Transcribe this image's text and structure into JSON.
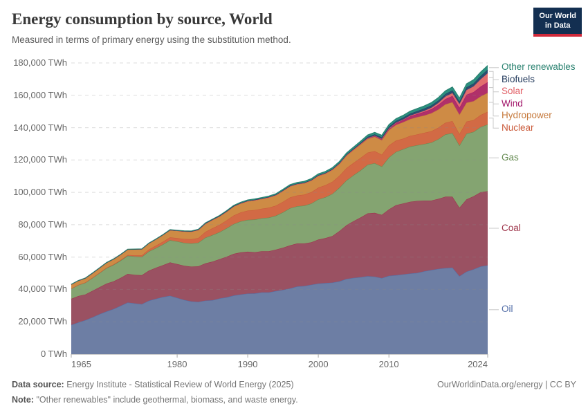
{
  "header": {
    "title": "Energy consumption by source, World",
    "subtitle": "Measured in terms of primary energy using the substitution method.",
    "logo_line1": "Our World",
    "logo_line2": "in Data"
  },
  "footer": {
    "source_label": "Data source:",
    "source_text": "Energy Institute - Statistical Review of World Energy (2025)",
    "note_label": "Note:",
    "note_text": "\"Other renewables\" include geothermal, biomass, and waste energy.",
    "right_text": "OurWorldinData.org/energy | CC BY"
  },
  "chart_data": {
    "type": "area",
    "stacked": true,
    "title": "Energy consumption by source, World",
    "entity": "World",
    "unit": "TWh",
    "ylim": [
      0,
      180000
    ],
    "xlim": [
      1965,
      2024
    ],
    "yticks": [
      0,
      20000,
      40000,
      60000,
      80000,
      100000,
      120000,
      140000,
      160000,
      180000
    ],
    "xticks": [
      1965,
      1980,
      1990,
      2000,
      2010,
      2024
    ],
    "grid": "dashed",
    "legend_position": "right",
    "x": [
      1965,
      1966,
      1967,
      1968,
      1969,
      1970,
      1971,
      1972,
      1973,
      1974,
      1975,
      1976,
      1977,
      1978,
      1979,
      1980,
      1981,
      1982,
      1983,
      1984,
      1985,
      1986,
      1987,
      1988,
      1989,
      1990,
      1991,
      1992,
      1993,
      1994,
      1995,
      1996,
      1997,
      1998,
      1999,
      2000,
      2001,
      2002,
      2003,
      2004,
      2005,
      2006,
      2007,
      2008,
      2009,
      2010,
      2011,
      2012,
      2013,
      2014,
      2015,
      2016,
      2017,
      2018,
      2019,
      2020,
      2021,
      2022,
      2023,
      2024
    ],
    "series": [
      {
        "name": "Oil",
        "color": "#546fa8",
        "fill": "#6d7ea4",
        "values": [
          18100,
          19600,
          21000,
          22800,
          24700,
          26400,
          27900,
          29900,
          31900,
          31400,
          30900,
          33000,
          34200,
          35300,
          36100,
          34800,
          33500,
          32600,
          32300,
          33100,
          33300,
          34400,
          35100,
          36200,
          36900,
          37400,
          37500,
          38200,
          38200,
          39000,
          39700,
          40600,
          41800,
          42100,
          42900,
          43600,
          43900,
          44200,
          45000,
          46500,
          47100,
          47600,
          48200,
          47900,
          47000,
          48400,
          48800,
          49300,
          49800,
          50200,
          51200,
          52000,
          52700,
          53200,
          53500,
          48200,
          51000,
          52400,
          54200,
          54900
        ]
      },
      {
        "name": "Coal",
        "color": "#9e344a",
        "fill": "#9a5162",
        "values": [
          16100,
          16300,
          15900,
          16300,
          16700,
          17200,
          17100,
          17200,
          17700,
          17600,
          17900,
          18600,
          19200,
          19700,
          20600,
          20900,
          21100,
          21500,
          22000,
          23000,
          23900,
          24300,
          25100,
          25800,
          26000,
          25900,
          25500,
          25400,
          25400,
          25600,
          26100,
          26600,
          26600,
          26300,
          26200,
          27200,
          27800,
          28800,
          31100,
          33200,
          35100,
          36900,
          38800,
          39400,
          39100,
          41100,
          43300,
          43800,
          44400,
          44500,
          43700,
          42900,
          43300,
          44100,
          43800,
          42300,
          44700,
          45200,
          45900,
          45800
        ]
      },
      {
        "name": "Gas",
        "color": "#668b52",
        "fill": "#84a471",
        "values": [
          6300,
          6800,
          7300,
          8000,
          8700,
          9600,
          10200,
          10700,
          11200,
          11400,
          11300,
          11900,
          12200,
          12800,
          13700,
          14000,
          14200,
          14300,
          14600,
          15900,
          16400,
          16700,
          17600,
          18400,
          19200,
          19700,
          20200,
          20400,
          20800,
          21000,
          21900,
          23000,
          23000,
          23400,
          24000,
          24900,
          25300,
          26100,
          26800,
          27700,
          28400,
          29100,
          30100,
          30700,
          29900,
          32100,
          32900,
          33600,
          34100,
          34400,
          35000,
          35900,
          36900,
          38500,
          39300,
          38500,
          40600,
          39800,
          40300,
          41300
        ]
      },
      {
        "name": "Nuclear",
        "color": "#ca5a3a",
        "fill": "#d26a45",
        "values": [
          70,
          90,
          110,
          140,
          170,
          220,
          290,
          400,
          530,
          680,
          1000,
          1200,
          1500,
          1700,
          1800,
          2000,
          2400,
          2600,
          2900,
          3600,
          4200,
          4500,
          4900,
          5300,
          5500,
          5700,
          5900,
          5900,
          6100,
          6200,
          6500,
          6700,
          6700,
          6800,
          7000,
          7200,
          7400,
          7500,
          7400,
          7600,
          7600,
          7700,
          7500,
          7500,
          7300,
          7400,
          7000,
          6500,
          6600,
          6700,
          6900,
          7000,
          7100,
          7200,
          7500,
          7100,
          7500,
          7300,
          7400,
          7800
        ]
      },
      {
        "name": "Hydropower",
        "color": "#c67a3d",
        "fill": "#ce8b45",
        "values": [
          2500,
          2600,
          2650,
          2800,
          2950,
          3100,
          3250,
          3350,
          3400,
          3700,
          3800,
          3800,
          3900,
          4200,
          4500,
          4600,
          4700,
          4800,
          5000,
          5100,
          5200,
          5300,
          5400,
          5600,
          5600,
          5900,
          6100,
          6100,
          6400,
          6500,
          6800,
          6900,
          7000,
          7100,
          7200,
          7300,
          7200,
          7300,
          7300,
          7700,
          8000,
          8300,
          8500,
          8900,
          9000,
          9500,
          9700,
          10100,
          10400,
          10700,
          10700,
          11100,
          11200,
          11400,
          11600,
          11900,
          11600,
          11700,
          11500,
          11700
        ]
      },
      {
        "name": "Wind",
        "color": "#a2176b",
        "fill": "#b03069",
        "values": [
          0,
          0,
          0,
          0,
          0,
          0,
          0,
          0,
          0,
          0,
          0,
          0,
          0,
          0,
          0,
          0,
          0,
          0,
          0,
          0,
          1,
          2,
          3,
          5,
          7,
          10,
          12,
          15,
          18,
          20,
          23,
          27,
          35,
          45,
          60,
          85,
          105,
          140,
          175,
          230,
          290,
          360,
          460,
          590,
          740,
          930,
          1170,
          1400,
          1700,
          1900,
          2250,
          2500,
          2900,
          3300,
          3850,
          4300,
          4950,
          5600,
          6100,
          6600
        ]
      },
      {
        "name": "Solar",
        "color": "#e15d64",
        "fill": "#e26e6e",
        "values": [
          0,
          0,
          0,
          0,
          0,
          0,
          0,
          0,
          0,
          0,
          0,
          0,
          0,
          0,
          0,
          0,
          0,
          0,
          0,
          0,
          0,
          0,
          0,
          0,
          0,
          1,
          1,
          1,
          2,
          2,
          2,
          2,
          3,
          3,
          3,
          3,
          4,
          5,
          7,
          9,
          12,
          16,
          22,
          35,
          55,
          90,
          170,
          260,
          360,
          500,
          670,
          850,
          1150,
          1500,
          1850,
          2300,
          2850,
          3500,
          4500,
          5600
        ]
      },
      {
        "name": "Biofuels",
        "color": "#233a5c",
        "fill": "#2c4e71",
        "values": [
          40,
          41,
          42,
          43,
          44,
          45,
          46,
          47,
          48,
          49,
          50,
          60,
          70,
          80,
          95,
          110,
          125,
          140,
          155,
          170,
          190,
          195,
          200,
          205,
          210,
          220,
          228,
          236,
          244,
          252,
          260,
          266,
          272,
          278,
          284,
          290,
          310,
          340,
          380,
          430,
          490,
          590,
          720,
          870,
          950,
          1050,
          1100,
          1150,
          1250,
          1300,
          1350,
          1400,
          1450,
          1550,
          1650,
          1550,
          1700,
          1800,
          2000,
          2100
        ]
      },
      {
        "name": "Other renewables",
        "color": "#2a8270",
        "fill": "#2c8f7f",
        "values": [
          60,
          64,
          68,
          72,
          76,
          80,
          86,
          92,
          98,
          104,
          110,
          124,
          138,
          152,
          166,
          180,
          200,
          220,
          240,
          260,
          280,
          324,
          368,
          412,
          456,
          500,
          530,
          560,
          590,
          620,
          650,
          690,
          730,
          770,
          810,
          850,
          890,
          930,
          970,
          1010,
          1050,
          1110,
          1170,
          1230,
          1290,
          1350,
          1420,
          1490,
          1560,
          1630,
          1700,
          1800,
          1900,
          2000,
          2100,
          2150,
          2250,
          2350,
          2450,
          2600
        ]
      }
    ]
  }
}
